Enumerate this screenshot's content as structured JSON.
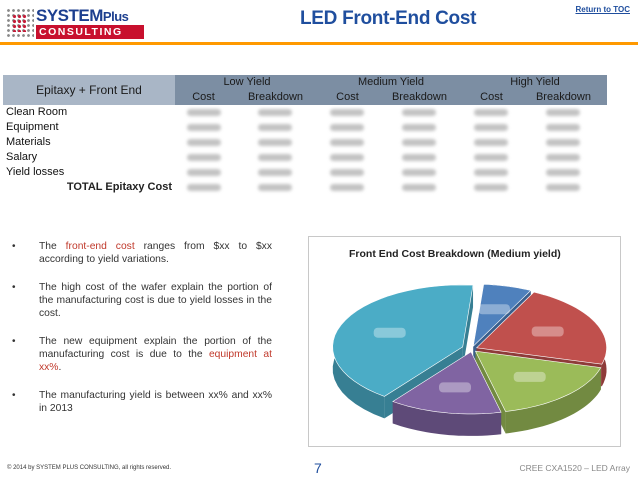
{
  "header": {
    "logo_top": "SYSTEM",
    "logo_plus": "Plus",
    "logo_bottom": "CONSULTING",
    "title": "LED Front-End Cost",
    "return_link": "Return to TOC"
  },
  "table": {
    "main_header": "Epitaxy + Front End",
    "groups": [
      "Low Yield",
      "Medium Yield",
      "High Yield"
    ],
    "sub_headers": [
      "Cost",
      "Breakdown",
      "Cost",
      "Breakdown",
      "Cost",
      "Breakdown"
    ],
    "rows": [
      "Clean Room",
      "Equipment",
      "Materials",
      "Salary",
      "Yield losses"
    ],
    "total_label": "TOTAL Epitaxy Cost"
  },
  "bullets": [
    {
      "parts": [
        "The ",
        "front-end cost",
        " ranges from $xx to $xx according to yield variations."
      ]
    },
    {
      "parts": [
        "The high cost of the wafer explain the portion of the manufacturing cost is due to yield losses in the cost.",
        "",
        ""
      ]
    },
    {
      "parts": [
        "The new equipment explain the portion of the manufacturing cost is due to the ",
        "equipment at xx%",
        "."
      ]
    },
    {
      "parts": [
        "The manufacturing yield is between xx% and xx% in 2013",
        "",
        ""
      ]
    }
  ],
  "chart_data": {
    "type": "pie",
    "title": "Front End Cost Breakdown (Medium yield)",
    "categories": [
      "",
      "",
      "",
      "",
      ""
    ],
    "values": [
      6,
      22,
      17,
      14,
      41
    ],
    "colors": [
      "#4f81bd",
      "#c0504d",
      "#9bbb59",
      "#8064a2",
      "#4bacc6"
    ],
    "dark_colors": [
      "#3a5f8c",
      "#8e3b39",
      "#728a41",
      "#5e4a78",
      "#377f93"
    ],
    "style": "3d-exploded",
    "legend": "none"
  },
  "footer": {
    "copyright": "© 2014 by SYSTEM PLUS CONSULTING, all rights reserved.",
    "page_number": "7",
    "right_text": "CREE CXA1520 – LED Array"
  }
}
